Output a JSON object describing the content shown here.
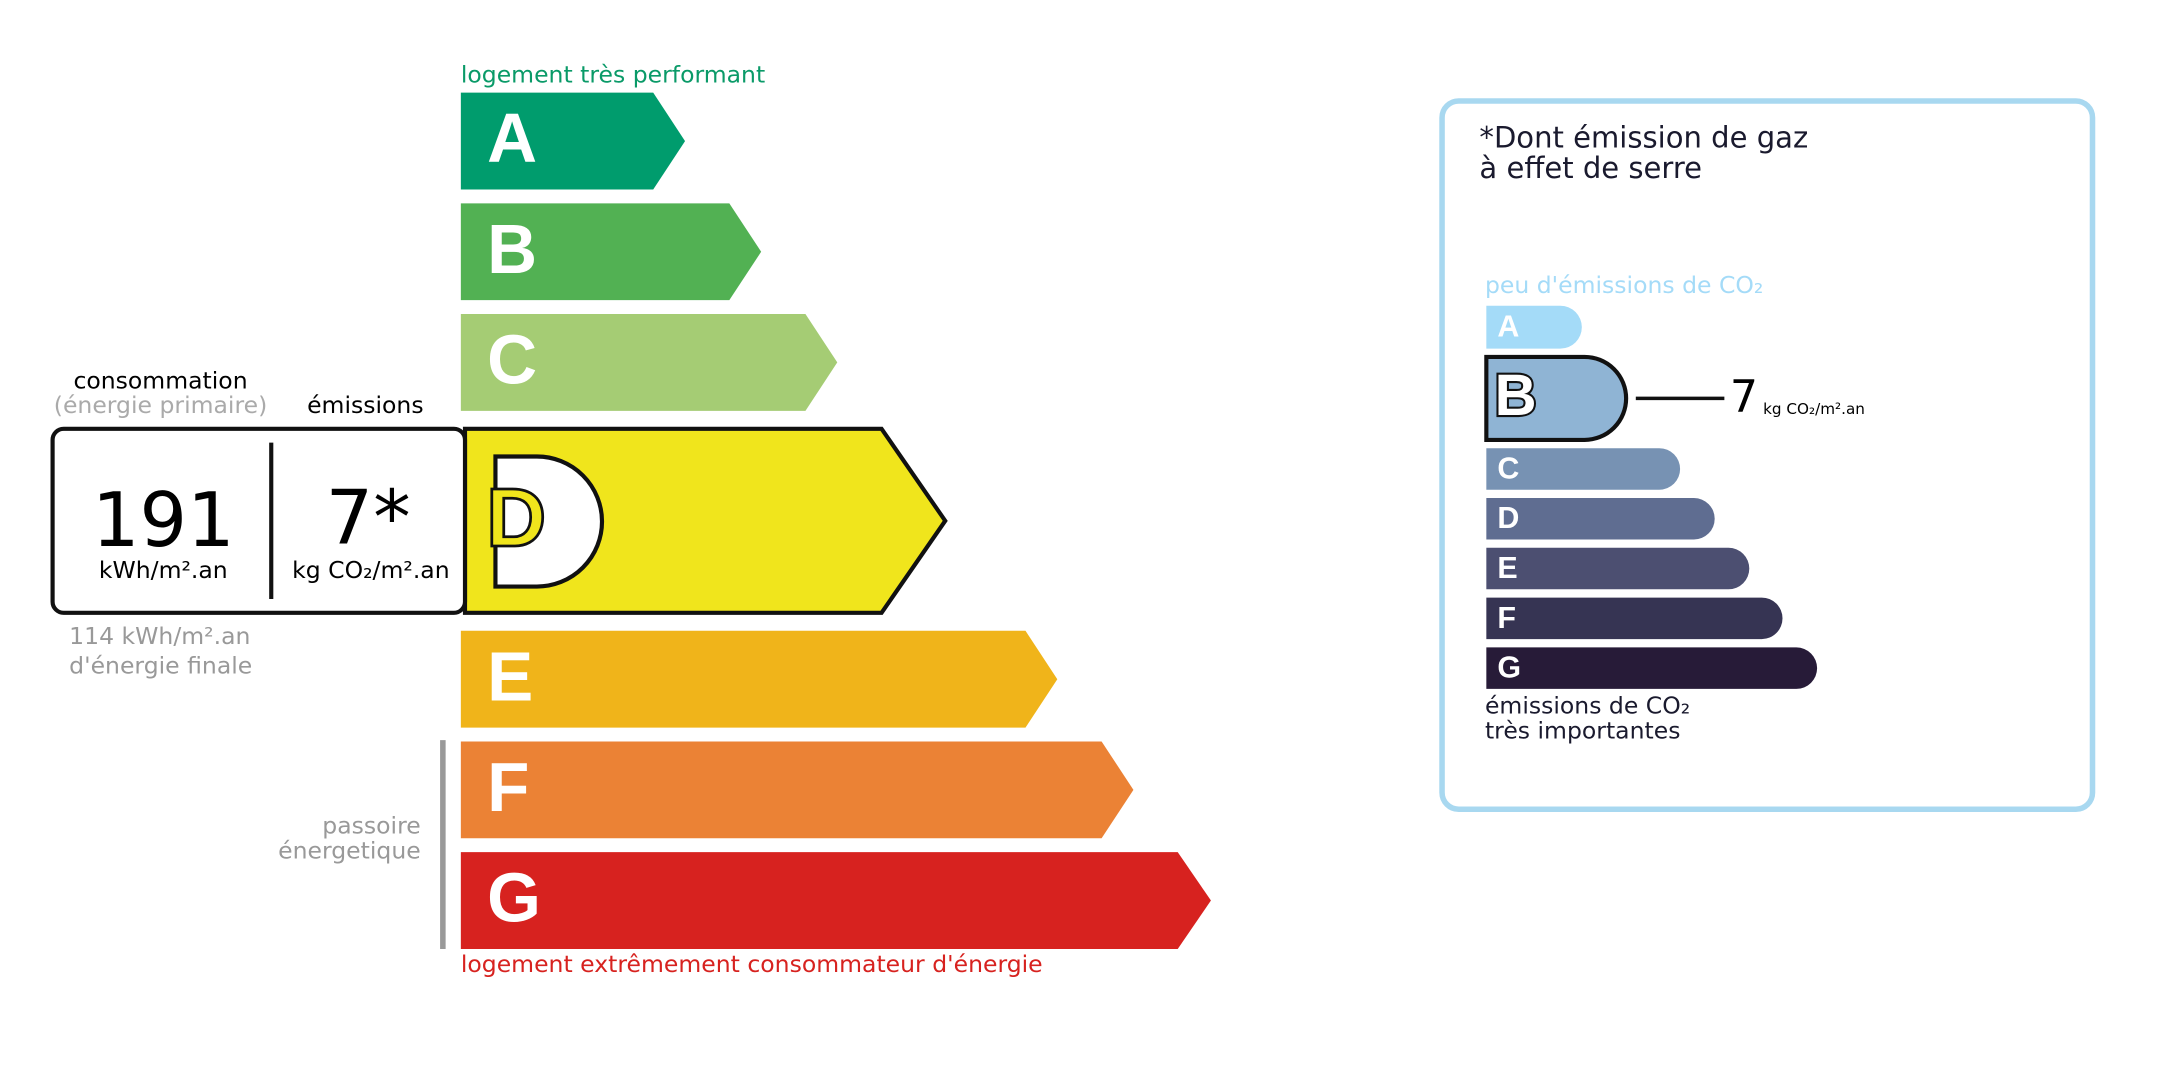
{
  "energy": {
    "top_label": "logement très performant",
    "bottom_label": "logement extrêmement consommateur d'énergie",
    "classes": [
      "A",
      "B",
      "C",
      "D",
      "E",
      "F",
      "G"
    ],
    "consumption_label": "consommation",
    "primary_label": "(énergie primaire)",
    "emissions_label": "émissions",
    "consumption_value": "191",
    "consumption_unit": "kWh/m².an",
    "emissions_value": "7*",
    "emissions_unit": "kg CO₂/m².an",
    "final_energy": "114 kWh/m².an",
    "final_energy_label": "d'énergie finale",
    "passoire": [
      "passoire",
      "énergetique"
    ]
  },
  "ghg": {
    "note": [
      "*Dont émission de gaz",
      "à effet de serre"
    ],
    "top_label": "peu d'émissions de CO₂",
    "classes": [
      "A",
      "B",
      "C",
      "D",
      "E",
      "F",
      "G"
    ],
    "value": "7",
    "unit": "kg CO₂/m².an",
    "bottom_label": [
      "émissions de CO₂",
      "très importantes"
    ]
  }
}
